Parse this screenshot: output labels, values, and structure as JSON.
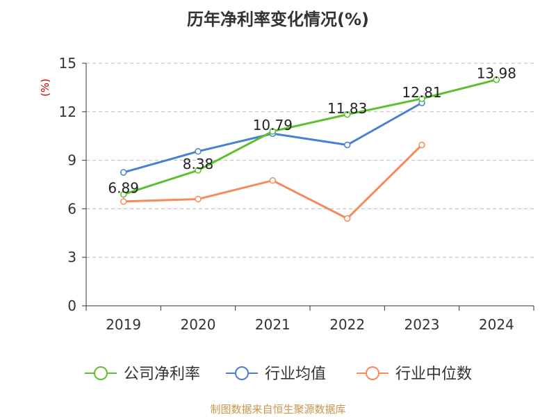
{
  "chart_data": {
    "type": "line",
    "title": "历年净利率变化情况(%)",
    "ylabel": "(%)",
    "ylim": [
      0,
      15
    ],
    "yticks": [
      0,
      3,
      6,
      9,
      12,
      15
    ],
    "grid": true,
    "legend_position": "bottom",
    "categories": [
      "2019",
      "2020",
      "2021",
      "2022",
      "2023",
      "2024"
    ],
    "series": [
      {
        "name": "公司净利率",
        "color": "#5cc02d",
        "values": [
          6.89,
          8.38,
          10.79,
          11.83,
          12.81,
          13.98
        ],
        "labels": [
          "6.89",
          "8.38",
          "10.79",
          "11.83",
          "12.81",
          "13.98"
        ]
      },
      {
        "name": "行业均值",
        "color": "#4a7fd6",
        "values": [
          8.25,
          9.55,
          10.65,
          9.95,
          12.55,
          null
        ]
      },
      {
        "name": "行业中位数",
        "color": "#f58a5a",
        "values": [
          6.45,
          6.6,
          7.75,
          5.4,
          9.95,
          null
        ]
      }
    ]
  },
  "footer": {
    "source": "制图数据来自恒生聚源数据库"
  }
}
